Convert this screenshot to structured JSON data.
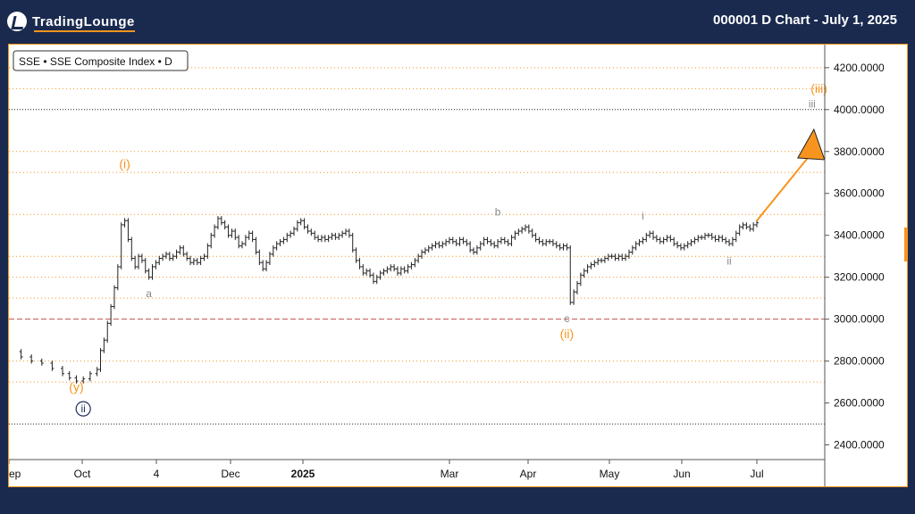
{
  "header": {
    "brand": "TradingLounge",
    "chart_title": "000001 D Chart - July 1, 2025"
  },
  "legend": {
    "label": "SSE • SSE Composite Index • D"
  },
  "colors": {
    "background": "#1a2a4f",
    "accent_orange": "#f7941d",
    "price_bars": "#222222",
    "wave_gray": "#8a8a8a",
    "wave_navy": "#1e2f5c",
    "support_line": "#c0504d"
  },
  "chart_data": {
    "type": "ohlc",
    "title": "SSE • SSE Composite Index • D",
    "xlabel": "",
    "ylabel": "",
    "ylim": [
      2330,
      4310
    ],
    "x_ticks": [
      "ep",
      "Oct",
      "4",
      "Dec",
      "2025",
      "Mar",
      "Apr",
      "May",
      "Jun",
      "Jul"
    ],
    "y_ticks": [
      "4200.0000",
      "4000.0000",
      "3800.0000",
      "3600.0000",
      "3400.0000",
      "3200.0000",
      "3000.0000",
      "2800.0000",
      "2600.0000",
      "2400.0000"
    ],
    "horizontal_levels": [
      {
        "value": 4200,
        "style": "orange-dotted"
      },
      {
        "value": 4100,
        "style": "orange-dotted"
      },
      {
        "value": 4000,
        "style": "black-dotted"
      },
      {
        "value": 3800,
        "style": "orange-dotted"
      },
      {
        "value": 3700,
        "style": "orange-dotted"
      },
      {
        "value": 3500,
        "style": "orange-dotted"
      },
      {
        "value": 3300,
        "style": "orange-dotted"
      },
      {
        "value": 3200,
        "style": "orange-dotted"
      },
      {
        "value": 3100,
        "style": "orange-dotted"
      },
      {
        "value": 3000,
        "style": "red-dashed"
      },
      {
        "value": 2800,
        "style": "orange-dotted"
      },
      {
        "value": 2700,
        "style": "orange-dotted"
      },
      {
        "value": 2500,
        "style": "black-dotted"
      }
    ],
    "price_path": [
      [
        0,
        2845
      ],
      [
        3,
        2820
      ],
      [
        6,
        2800
      ],
      [
        9,
        2790
      ],
      [
        12,
        2765
      ],
      [
        15,
        2740
      ],
      [
        17,
        2720
      ],
      [
        19,
        2705
      ],
      [
        21,
        2715
      ],
      [
        23,
        2740
      ],
      [
        25,
        2760
      ],
      [
        26,
        2850
      ],
      [
        27,
        2900
      ],
      [
        28,
        2980
      ],
      [
        29,
        3060
      ],
      [
        30,
        3150
      ],
      [
        31,
        3250
      ],
      [
        32,
        3450
      ],
      [
        33,
        3470
      ],
      [
        34,
        3380
      ],
      [
        35,
        3290
      ],
      [
        36,
        3250
      ],
      [
        37,
        3300
      ],
      [
        38,
        3280
      ],
      [
        39,
        3230
      ],
      [
        40,
        3200
      ],
      [
        41,
        3250
      ],
      [
        42,
        3270
      ],
      [
        43,
        3290
      ],
      [
        44,
        3300
      ],
      [
        45,
        3310
      ],
      [
        46,
        3290
      ],
      [
        47,
        3300
      ],
      [
        48,
        3320
      ],
      [
        49,
        3340
      ],
      [
        50,
        3310
      ],
      [
        51,
        3290
      ],
      [
        52,
        3270
      ],
      [
        53,
        3280
      ],
      [
        54,
        3270
      ],
      [
        55,
        3290
      ],
      [
        56,
        3300
      ],
      [
        57,
        3350
      ],
      [
        58,
        3400
      ],
      [
        59,
        3440
      ],
      [
        60,
        3480
      ],
      [
        61,
        3460
      ],
      [
        62,
        3440
      ],
      [
        63,
        3400
      ],
      [
        64,
        3420
      ],
      [
        65,
        3390
      ],
      [
        66,
        3350
      ],
      [
        67,
        3360
      ],
      [
        68,
        3390
      ],
      [
        69,
        3410
      ],
      [
        70,
        3380
      ],
      [
        71,
        3320
      ],
      [
        72,
        3270
      ],
      [
        73,
        3240
      ],
      [
        74,
        3270
      ],
      [
        75,
        3310
      ],
      [
        76,
        3340
      ],
      [
        77,
        3360
      ],
      [
        78,
        3370
      ],
      [
        79,
        3380
      ],
      [
        80,
        3400
      ],
      [
        81,
        3410
      ],
      [
        82,
        3430
      ],
      [
        83,
        3460
      ],
      [
        84,
        3470
      ],
      [
        85,
        3440
      ],
      [
        86,
        3420
      ],
      [
        87,
        3410
      ],
      [
        88,
        3390
      ],
      [
        89,
        3380
      ],
      [
        90,
        3390
      ],
      [
        91,
        3380
      ],
      [
        92,
        3390
      ],
      [
        93,
        3400
      ],
      [
        94,
        3390
      ],
      [
        95,
        3400
      ],
      [
        96,
        3410
      ],
      [
        97,
        3420
      ],
      [
        98,
        3400
      ],
      [
        99,
        3330
      ],
      [
        100,
        3280
      ],
      [
        101,
        3250
      ],
      [
        102,
        3220
      ],
      [
        103,
        3230
      ],
      [
        104,
        3210
      ],
      [
        105,
        3180
      ],
      [
        106,
        3200
      ],
      [
        107,
        3220
      ],
      [
        108,
        3230
      ],
      [
        109,
        3240
      ],
      [
        110,
        3250
      ],
      [
        111,
        3240
      ],
      [
        112,
        3220
      ],
      [
        113,
        3240
      ],
      [
        114,
        3230
      ],
      [
        115,
        3250
      ],
      [
        116,
        3260
      ],
      [
        117,
        3280
      ],
      [
        118,
        3300
      ],
      [
        119,
        3320
      ],
      [
        120,
        3330
      ],
      [
        121,
        3340
      ],
      [
        122,
        3350
      ],
      [
        123,
        3360
      ],
      [
        124,
        3350
      ],
      [
        125,
        3360
      ],
      [
        126,
        3370
      ],
      [
        127,
        3380
      ],
      [
        128,
        3370
      ],
      [
        129,
        3360
      ],
      [
        130,
        3380
      ],
      [
        131,
        3370
      ],
      [
        132,
        3360
      ],
      [
        133,
        3330
      ],
      [
        134,
        3320
      ],
      [
        135,
        3340
      ],
      [
        136,
        3360
      ],
      [
        137,
        3380
      ],
      [
        138,
        3370
      ],
      [
        139,
        3360
      ],
      [
        140,
        3350
      ],
      [
        141,
        3370
      ],
      [
        142,
        3380
      ],
      [
        143,
        3370
      ],
      [
        144,
        3360
      ],
      [
        145,
        3390
      ],
      [
        146,
        3410
      ],
      [
        147,
        3420
      ],
      [
        148,
        3430
      ],
      [
        149,
        3440
      ],
      [
        150,
        3420
      ],
      [
        151,
        3400
      ],
      [
        152,
        3380
      ],
      [
        153,
        3370
      ],
      [
        154,
        3360
      ],
      [
        155,
        3370
      ],
      [
        156,
        3370
      ],
      [
        157,
        3360
      ],
      [
        158,
        3350
      ],
      [
        159,
        3340
      ],
      [
        160,
        3350
      ],
      [
        161,
        3340
      ],
      [
        162,
        3080
      ],
      [
        163,
        3130
      ],
      [
        164,
        3170
      ],
      [
        165,
        3210
      ],
      [
        166,
        3230
      ],
      [
        167,
        3250
      ],
      [
        168,
        3260
      ],
      [
        169,
        3270
      ],
      [
        170,
        3280
      ],
      [
        171,
        3280
      ],
      [
        172,
        3290
      ],
      [
        173,
        3300
      ],
      [
        174,
        3300
      ],
      [
        175,
        3290
      ],
      [
        176,
        3300
      ],
      [
        177,
        3290
      ],
      [
        178,
        3300
      ],
      [
        179,
        3320
      ],
      [
        180,
        3340
      ],
      [
        181,
        3360
      ],
      [
        182,
        3370
      ],
      [
        183,
        3380
      ],
      [
        184,
        3400
      ],
      [
        185,
        3410
      ],
      [
        186,
        3390
      ],
      [
        187,
        3380
      ],
      [
        188,
        3370
      ],
      [
        189,
        3380
      ],
      [
        190,
        3390
      ],
      [
        191,
        3380
      ],
      [
        192,
        3360
      ],
      [
        193,
        3350
      ],
      [
        194,
        3340
      ],
      [
        195,
        3350
      ],
      [
        196,
        3360
      ],
      [
        197,
        3370
      ],
      [
        198,
        3380
      ],
      [
        199,
        3390
      ],
      [
        200,
        3390
      ],
      [
        201,
        3400
      ],
      [
        202,
        3400
      ],
      [
        203,
        3390
      ],
      [
        204,
        3380
      ],
      [
        205,
        3390
      ],
      [
        206,
        3380
      ],
      [
        207,
        3370
      ],
      [
        208,
        3360
      ],
      [
        209,
        3380
      ],
      [
        210,
        3410
      ],
      [
        211,
        3440
      ],
      [
        212,
        3450
      ],
      [
        213,
        3440
      ],
      [
        214,
        3430
      ],
      [
        215,
        3450
      ],
      [
        216,
        3460
      ]
    ],
    "path_x_range": [
      0,
      216
    ],
    "wave_labels": [
      {
        "text": "(i)",
        "at_index": 33,
        "value": 3720,
        "color": "orange"
      },
      {
        "text": "(y)",
        "at_index": 19,
        "value": 2655,
        "color": "orange"
      },
      {
        "text": "ii",
        "at_index": 21,
        "value": 2555,
        "color": "navy",
        "circled": true
      },
      {
        "text": "a",
        "at_index": 40,
        "value": 3105,
        "color": "gray"
      },
      {
        "text": "b",
        "at_index": 141,
        "value": 3495,
        "color": "gray"
      },
      {
        "text": "c",
        "at_index": 161,
        "value": 2985,
        "color": "gray"
      },
      {
        "text": "(ii)",
        "at_index": 161,
        "value": 2910,
        "color": "orange"
      },
      {
        "text": "i",
        "at_index": 183,
        "value": 3475,
        "color": "gray"
      },
      {
        "text": "ii",
        "at_index": 208,
        "value": 3260,
        "color": "gray"
      },
      {
        "text": "iii",
        "at_index": 232,
        "value": 4010,
        "color": "gray"
      },
      {
        "text": "(iii)",
        "at_index": 234,
        "value": 4080,
        "color": "orange"
      }
    ],
    "projection_arrow": {
      "from": [
        216,
        3470
      ],
      "to": [
        232,
        3880
      ],
      "color": "orange"
    }
  }
}
